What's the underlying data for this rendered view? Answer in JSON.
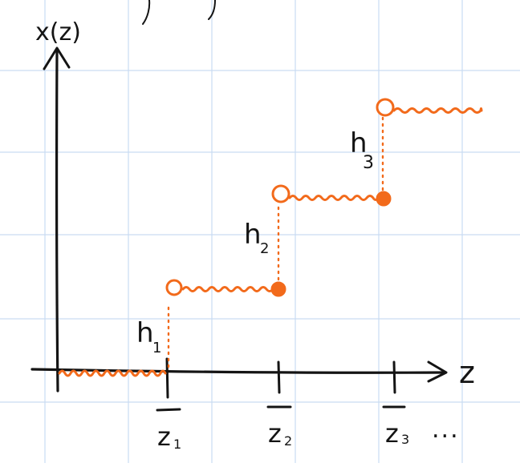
{
  "diagram": {
    "axes": {
      "y_label": "x(z)",
      "x_label": "z"
    },
    "jump_heights": [
      "h",
      "h",
      "h"
    ],
    "jump_subscripts": [
      "1",
      "2",
      "3"
    ],
    "jump_points": [
      "z",
      "z",
      "z"
    ],
    "jump_point_subscripts": [
      "1",
      "2",
      "3"
    ],
    "ellipsis": "...",
    "colors": {
      "path": "#f26a1b",
      "ink": "#141414",
      "grid": "#c9dcf2"
    }
  }
}
